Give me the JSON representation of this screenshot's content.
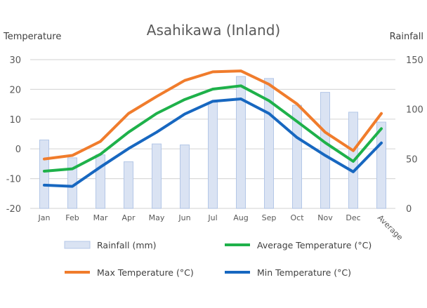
{
  "chart_data": {
    "type": "bar+line",
    "title": "Asahikawa (Inland)",
    "ylabel_left": "Temperature",
    "ylabel_right": "Rainfall",
    "categories": [
      "Jan",
      "Feb",
      "Mar",
      "Apr",
      "May",
      "Jun",
      "Jul",
      "Aug",
      "Sep",
      "Oct",
      "Nov",
      "Dec",
      "Average"
    ],
    "ylim_left": [
      -20,
      30
    ],
    "yticks_left": [
      -20,
      -10,
      0,
      10,
      20,
      30
    ],
    "ylim_right": [
      0,
      150
    ],
    "yticks_right": [
      0,
      50,
      100,
      150
    ],
    "grid": true,
    "legend_position": "bottom",
    "series": [
      {
        "name": "Rainfall (mm)",
        "type": "bar",
        "axis": "right",
        "color": "#dae3f3",
        "border": "#b4c7e7",
        "values": [
          69,
          51,
          54,
          47,
          65,
          64,
          107,
          133,
          131,
          104,
          117,
          97,
          87
        ]
      },
      {
        "name": "Average Temperature (°C)",
        "type": "line",
        "axis": "left",
        "color": "#1eb14a",
        "values": [
          -7.5,
          -6.7,
          -1.8,
          5.6,
          11.9,
          16.6,
          20.1,
          21.2,
          16.2,
          9.2,
          2.1,
          -4.2,
          6.8
        ]
      },
      {
        "name": "Max Temperature (°C)",
        "type": "line",
        "axis": "left",
        "color": "#f07c2c",
        "values": [
          -3.4,
          -2.2,
          2.5,
          11.9,
          17.6,
          23.0,
          25.9,
          26.2,
          21.7,
          15.1,
          5.6,
          -0.6,
          11.9
        ]
      },
      {
        "name": "Min Temperature (°C)",
        "type": "line",
        "axis": "left",
        "color": "#1767c0",
        "values": [
          -12.2,
          -12.6,
          -6.1,
          0.1,
          5.6,
          11.7,
          16.0,
          16.8,
          11.9,
          3.8,
          -2.2,
          -7.7,
          2.0
        ]
      }
    ]
  }
}
